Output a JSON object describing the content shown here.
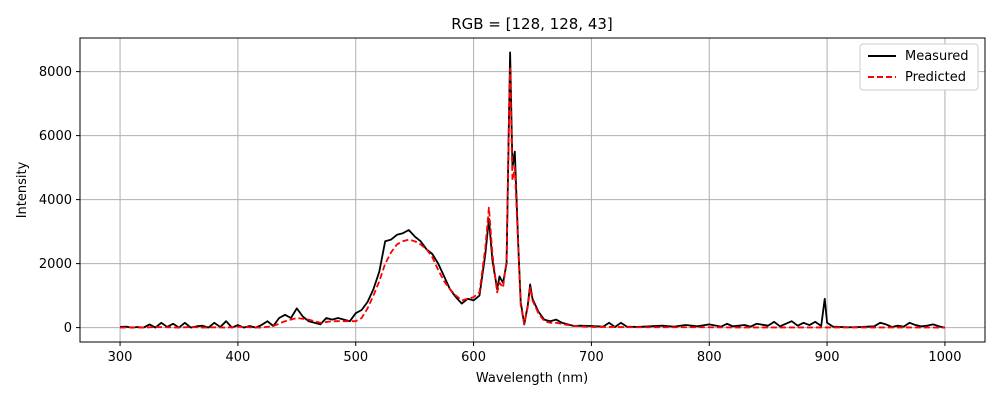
{
  "chart_data": {
    "type": "line",
    "title": "RGB = [128, 128, 43]",
    "xlabel": "Wavelength (nm)",
    "ylabel": "Intensity",
    "xlim": [
      266,
      1034
    ],
    "ylim": [
      -450,
      9050
    ],
    "xticks": [
      300,
      400,
      500,
      600,
      700,
      800,
      900,
      1000
    ],
    "yticks": [
      0,
      2000,
      4000,
      6000,
      8000
    ],
    "grid": true,
    "legend_position": "top-right",
    "series": [
      {
        "name": "Measured",
        "color": "#000000",
        "style": "solid",
        "x": [
          300,
          305,
          310,
          315,
          320,
          325,
          330,
          335,
          340,
          345,
          350,
          355,
          360,
          365,
          370,
          375,
          380,
          385,
          390,
          395,
          400,
          405,
          410,
          415,
          420,
          425,
          430,
          435,
          440,
          445,
          450,
          455,
          460,
          465,
          470,
          475,
          480,
          485,
          490,
          495,
          500,
          505,
          510,
          515,
          520,
          525,
          530,
          535,
          540,
          545,
          550,
          555,
          560,
          565,
          570,
          575,
          580,
          585,
          590,
          595,
          600,
          605,
          610,
          613,
          616,
          620,
          622,
          625,
          628,
          630,
          631,
          633,
          635,
          638,
          640,
          643,
          646,
          648,
          650,
          655,
          660,
          665,
          670,
          675,
          680,
          685,
          690,
          700,
          710,
          715,
          720,
          725,
          730,
          740,
          750,
          760,
          770,
          780,
          790,
          800,
          810,
          815,
          820,
          830,
          835,
          840,
          850,
          855,
          860,
          870,
          875,
          880,
          885,
          890,
          895,
          898,
          900,
          905,
          910,
          920,
          930,
          940,
          945,
          950,
          955,
          960,
          965,
          970,
          975,
          980,
          985,
          990,
          995,
          1000
        ],
        "values": [
          20,
          30,
          0,
          20,
          0,
          100,
          0,
          150,
          20,
          120,
          0,
          150,
          0,
          40,
          60,
          0,
          150,
          20,
          200,
          0,
          80,
          0,
          50,
          0,
          80,
          200,
          50,
          300,
          400,
          300,
          600,
          350,
          200,
          150,
          100,
          300,
          250,
          300,
          250,
          200,
          450,
          550,
          800,
          1200,
          1750,
          2700,
          2750,
          2900,
          2950,
          3050,
          2850,
          2700,
          2450,
          2300,
          2000,
          1600,
          1200,
          950,
          750,
          900,
          850,
          1000,
          2300,
          3400,
          2100,
          1200,
          1600,
          1400,
          2000,
          6500,
          8600,
          5000,
          5500,
          2500,
          800,
          100,
          700,
          1350,
          900,
          500,
          250,
          200,
          250,
          150,
          100,
          50,
          60,
          50,
          30,
          150,
          20,
          150,
          30,
          20,
          40,
          60,
          30,
          80,
          40,
          100,
          30,
          120,
          40,
          80,
          30,
          120,
          60,
          180,
          40,
          200,
          60,
          150,
          80,
          180,
          50,
          900,
          150,
          30,
          20,
          10,
          20,
          40,
          150,
          100,
          20,
          60,
          30,
          150,
          80,
          40,
          60,
          100,
          40,
          0
        ]
      },
      {
        "name": "Predicted",
        "color": "#ff0000",
        "style": "dashed",
        "x": [
          300,
          310,
          320,
          330,
          340,
          350,
          360,
          370,
          380,
          390,
          400,
          410,
          420,
          430,
          440,
          450,
          460,
          470,
          480,
          490,
          500,
          505,
          510,
          515,
          520,
          525,
          530,
          535,
          540,
          545,
          550,
          555,
          560,
          565,
          570,
          575,
          580,
          585,
          590,
          595,
          600,
          605,
          610,
          613,
          616,
          620,
          622,
          625,
          628,
          630,
          631,
          633,
          635,
          638,
          640,
          643,
          646,
          648,
          650,
          655,
          660,
          665,
          670,
          680,
          690,
          700,
          720,
          740,
          760,
          780,
          800,
          820,
          840,
          860,
          880,
          900,
          920,
          940,
          960,
          980,
          1000
        ],
        "values": [
          0,
          10,
          0,
          20,
          10,
          0,
          20,
          0,
          10,
          0,
          30,
          10,
          0,
          50,
          200,
          300,
          250,
          150,
          200,
          200,
          200,
          300,
          600,
          1000,
          1450,
          2000,
          2350,
          2600,
          2700,
          2750,
          2700,
          2600,
          2450,
          2200,
          1800,
          1450,
          1200,
          1000,
          850,
          900,
          950,
          1100,
          2500,
          3750,
          2300,
          1100,
          1400,
          1250,
          2100,
          6500,
          8100,
          4600,
          5000,
          2400,
          700,
          120,
          650,
          1250,
          850,
          450,
          200,
          150,
          150,
          80,
          40,
          20,
          20,
          10,
          10,
          10,
          10,
          5,
          5,
          5,
          5,
          5,
          5,
          5,
          5,
          5,
          0
        ]
      }
    ]
  }
}
